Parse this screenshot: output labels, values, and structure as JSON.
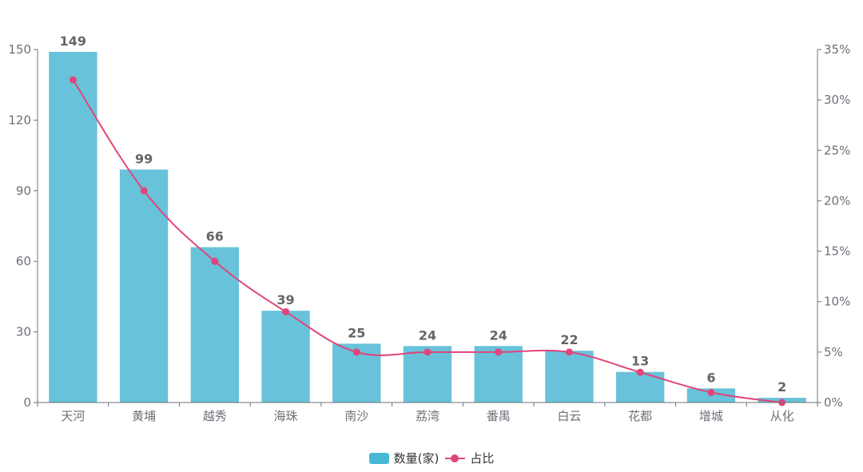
{
  "chart_data": {
    "type": "bar",
    "categories": [
      "天河",
      "黄埔",
      "越秀",
      "海珠",
      "南沙",
      "荔湾",
      "番禺",
      "白云",
      "花都",
      "增城",
      "从化"
    ],
    "series": [
      {
        "name": "数量(家)",
        "type": "bar",
        "axis": "left",
        "color": "#68c2d9",
        "values": [
          149,
          99,
          66,
          39,
          25,
          24,
          24,
          22,
          13,
          6,
          2
        ]
      },
      {
        "name": "占比",
        "type": "line",
        "axis": "right",
        "color": "#e0457b",
        "values": [
          32,
          21,
          14,
          9,
          5,
          5,
          5,
          5,
          3,
          1,
          0
        ]
      }
    ],
    "y_left": {
      "ylim": [
        0,
        150
      ],
      "ticks": [
        "0",
        "30",
        "60",
        "90",
        "120",
        "150"
      ]
    },
    "y_right": {
      "ylim": [
        0,
        35
      ],
      "ticks": [
        "0%",
        "5%",
        "10%",
        "15%",
        "20%",
        "25%",
        "30%",
        "35%"
      ]
    },
    "title": "",
    "xlabel": "",
    "ylabel": "",
    "grid": false,
    "legend_position": "bottom-center"
  },
  "legend": {
    "bar_label": "数量(家)",
    "line_label": "占比",
    "bar_color": "#46b8d6",
    "line_color": "#e0457b"
  }
}
